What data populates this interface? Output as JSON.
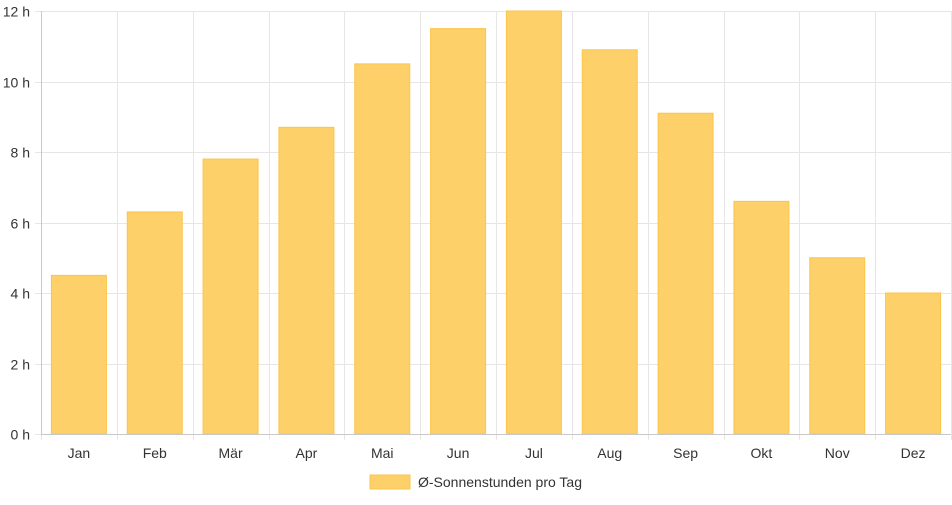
{
  "chart_data": {
    "type": "bar",
    "categories": [
      "Jan",
      "Feb",
      "Mär",
      "Apr",
      "Mai",
      "Jun",
      "Jul",
      "Aug",
      "Sep",
      "Okt",
      "Nov",
      "Dez"
    ],
    "series": [
      {
        "name": "Ø-Sonnenstunden pro Tag",
        "values": [
          4.5,
          6.3,
          7.8,
          8.7,
          10.5,
          11.5,
          12.0,
          10.9,
          9.1,
          6.6,
          5.0,
          4.0
        ]
      }
    ],
    "ylim": [
      0,
      12
    ],
    "yticks": [
      0,
      2,
      4,
      6,
      8,
      10,
      12
    ],
    "ytick_labels": [
      "0 h",
      "2 h",
      "4 h",
      "6 h",
      "8 h",
      "10 h",
      "12 h"
    ],
    "grid": true,
    "legend_position": "bottom",
    "colors": {
      "bar": "#fdd06a",
      "bar_border": "#fcc54a"
    }
  }
}
